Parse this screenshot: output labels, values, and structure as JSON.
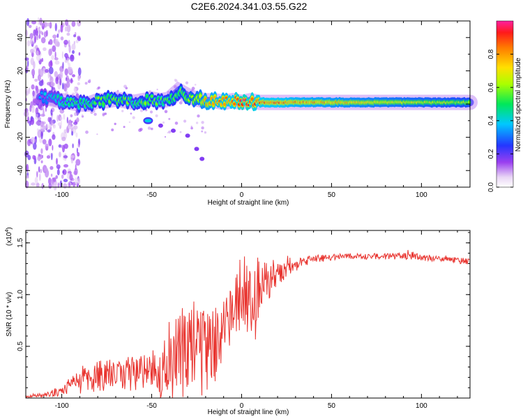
{
  "title": "C2E6.2024.341.03.55.G22",
  "chart_data": [
    {
      "type": "heatmap",
      "xlabel": "Height of straight line (km)",
      "ylabel": "Frequency (Hz)",
      "xlim": [
        -120,
        127
      ],
      "ylim": [
        -50,
        50
      ],
      "xticks": [
        -100,
        -50,
        0,
        50,
        100
      ],
      "xtick_labels": [
        "-100",
        "-50",
        "0",
        "50",
        "100"
      ],
      "yticks": [
        -40,
        -20,
        0,
        20,
        40
      ],
      "ytick_labels": [
        "-40",
        "-20",
        "0",
        "20",
        "40"
      ],
      "colorbar": {
        "label": "Normalized spectral amplitude",
        "range": [
          0,
          1
        ],
        "ticks": [
          0.0,
          0.2,
          0.4,
          0.6,
          0.8
        ],
        "tick_labels": [
          "0.0",
          "0.2",
          "0.4",
          "0.6",
          "0.8"
        ]
      },
      "ridge": {
        "x": [
          -115,
          -110,
          -105,
          -100,
          -95,
          -90,
          -85,
          -80,
          -75,
          -70,
          -65,
          -60,
          -55,
          -50,
          -45,
          -40,
          -35,
          -30,
          -25,
          -20,
          -15,
          -10,
          -5,
          0,
          5,
          10,
          15,
          20,
          30,
          50,
          75,
          100,
          127
        ],
        "freq": [
          5,
          4,
          3,
          2,
          1,
          0,
          0,
          2,
          2,
          3,
          2,
          1,
          2,
          3,
          2,
          3,
          8,
          5,
          3,
          2,
          2,
          1,
          2,
          1,
          2,
          1,
          1,
          1,
          1,
          1,
          1,
          1,
          1
        ],
        "amplitude": [
          0.3,
          0.35,
          0.4,
          0.45,
          0.5,
          0.5,
          0.5,
          0.55,
          0.55,
          0.55,
          0.55,
          0.5,
          0.55,
          0.55,
          0.5,
          0.55,
          0.55,
          0.6,
          0.65,
          0.75,
          0.8,
          0.8,
          0.85,
          0.95,
          0.9,
          0.85,
          0.85,
          0.85,
          0.8,
          0.75,
          0.7,
          0.65,
          0.6
        ]
      },
      "secondary_track": {
        "x": [
          -52,
          -45,
          -38,
          -30,
          -25,
          -22
        ],
        "freq": [
          -10,
          -13,
          -16,
          -19,
          -27,
          -33
        ]
      }
    },
    {
      "type": "line",
      "xlabel": "Height of straight line (km)",
      "ylabel": "SNR (10 * v/v)",
      "scale_label": "(x10",
      "scale_exponent": "4",
      "xlim": [
        -120,
        127
      ],
      "ylim": [
        0,
        1.62
      ],
      "xticks": [
        -100,
        -50,
        0,
        50,
        100
      ],
      "xtick_labels": [
        "-100",
        "-50",
        "0",
        "50",
        "100"
      ],
      "yticks": [
        0.5,
        1.0,
        1.5
      ],
      "ytick_labels": [
        "0.5",
        "1.0",
        "1.5"
      ],
      "series_color": "#e8332e",
      "envelope": {
        "x": [
          -120,
          -110,
          -100,
          -95,
          -90,
          -85,
          -80,
          -75,
          -70,
          -65,
          -60,
          -55,
          -50,
          -45,
          -40,
          -35,
          -30,
          -25,
          -20,
          -15,
          -10,
          -5,
          0,
          5,
          10,
          15,
          20,
          25,
          30,
          35,
          40,
          50,
          60,
          70,
          80,
          90,
          95,
          100,
          110,
          120,
          127
        ],
        "mean": [
          0.01,
          0.03,
          0.07,
          0.12,
          0.17,
          0.2,
          0.21,
          0.22,
          0.22,
          0.22,
          0.26,
          0.24,
          0.22,
          0.25,
          0.32,
          0.4,
          0.45,
          0.48,
          0.42,
          0.5,
          0.65,
          0.85,
          0.95,
          0.98,
          0.95,
          1.1,
          1.2,
          1.25,
          1.28,
          1.32,
          1.34,
          1.36,
          1.37,
          1.37,
          1.37,
          1.37,
          1.38,
          1.36,
          1.34,
          1.33,
          1.32
        ],
        "noise": [
          0.01,
          0.02,
          0.05,
          0.09,
          0.13,
          0.15,
          0.15,
          0.16,
          0.15,
          0.15,
          0.22,
          0.18,
          0.18,
          0.25,
          0.45,
          0.55,
          0.45,
          0.5,
          0.4,
          0.38,
          0.3,
          0.3,
          0.3,
          0.35,
          0.45,
          0.2,
          0.12,
          0.08,
          0.06,
          0.05,
          0.04,
          0.03,
          0.03,
          0.03,
          0.03,
          0.03,
          0.04,
          0.03,
          0.03,
          0.03,
          0.03
        ]
      }
    }
  ]
}
